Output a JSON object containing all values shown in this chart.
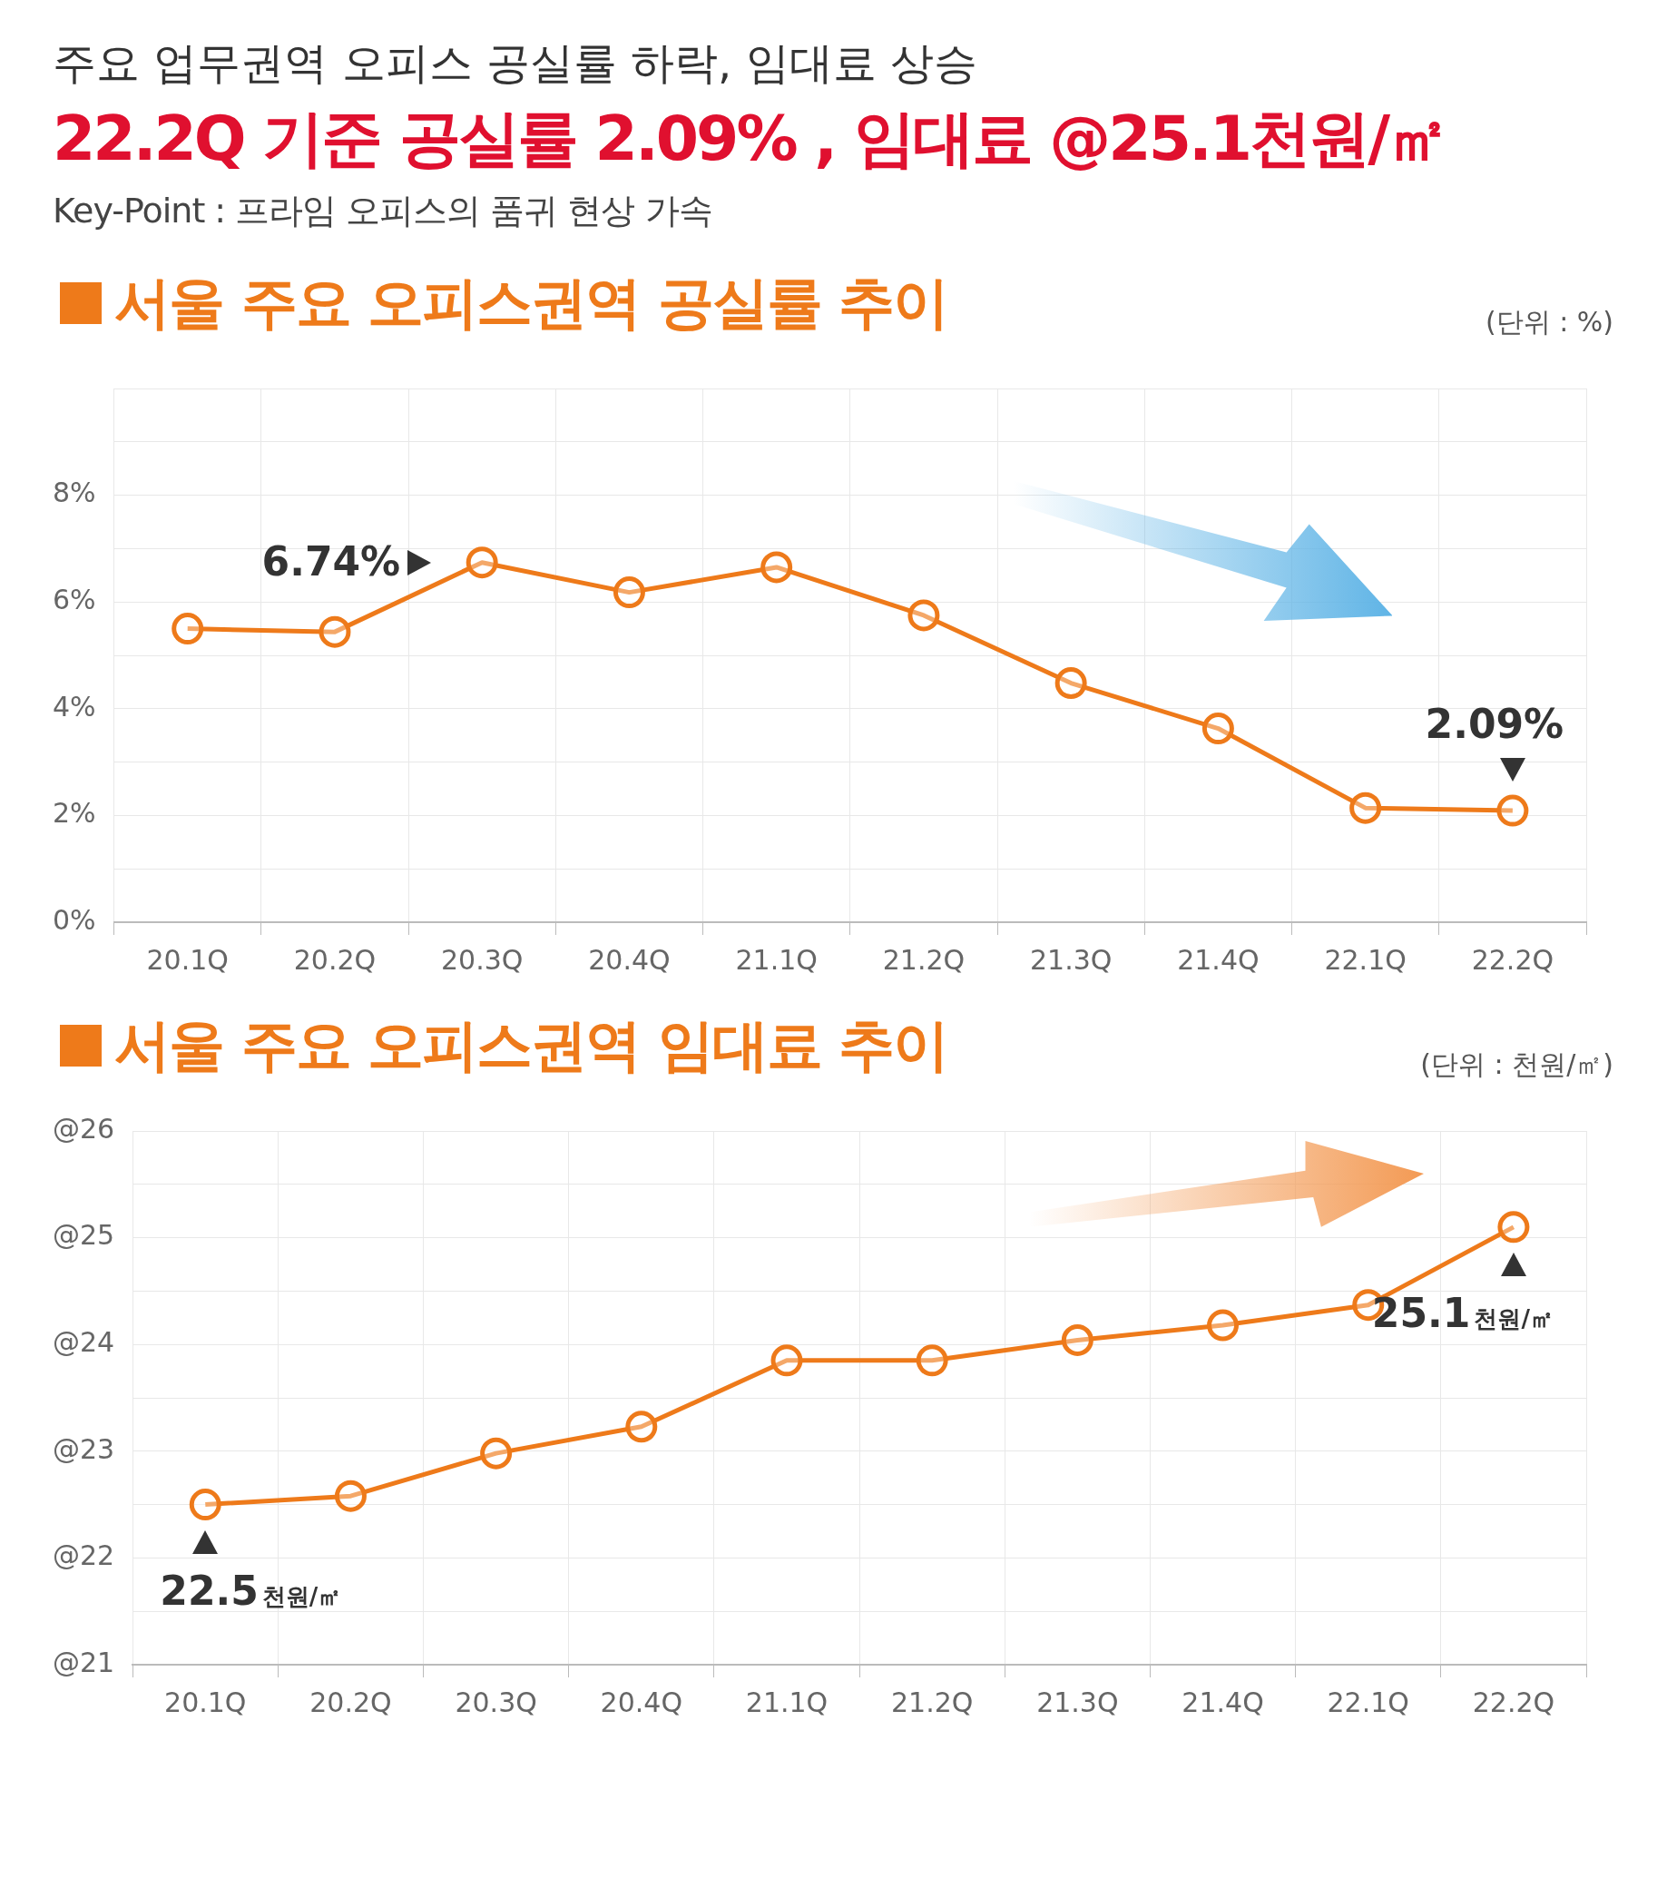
{
  "chart_data": [
    {
      "type": "other",
      "title": "주요 업무권역 오피스 공실률 하락, 임대료 상승",
      "subtitle": "22.2Q 기준 공실률 2.09% , 임대료 @25.1천원/㎡",
      "annotations": [
        "Key-Point : 프라임 오피스의 품귀 현상 가속"
      ]
    },
    {
      "type": "line",
      "title": "서울 주요 오피스권역 공실률 추이",
      "ylabel": "(단위 : %)",
      "categories": [
        "20.1Q",
        "20.2Q",
        "20.3Q",
        "20.4Q",
        "21.1Q",
        "21.2Q",
        "21.3Q",
        "21.4Q",
        "22.1Q",
        "22.2Q"
      ],
      "series": [
        {
          "color": "#ee7a1a",
          "values": [
            5.5,
            5.44,
            6.74,
            6.18,
            6.65,
            5.75,
            4.48,
            3.63,
            2.14,
            2.09
          ],
          "value_labels": [
            null,
            null,
            "6.74%",
            null,
            null,
            null,
            null,
            null,
            null,
            "2.09%"
          ]
        }
      ],
      "ylim": [
        0,
        10
      ],
      "yticks": [
        {
          "value": 0,
          "label": "0%"
        },
        {
          "value": 1,
          "label": null
        },
        {
          "value": 2,
          "label": "2%"
        },
        {
          "value": 3,
          "label": null
        },
        {
          "value": 4,
          "label": "4%"
        },
        {
          "value": 5,
          "label": null
        },
        {
          "value": 6,
          "label": "6%"
        },
        {
          "value": 7,
          "label": null
        },
        {
          "value": 8,
          "label": "8%"
        },
        {
          "value": 9,
          "label": null
        },
        {
          "value": 10,
          "label": null
        }
      ],
      "grid": true,
      "legend": false,
      "marker": "circle",
      "line_style": "solid"
    },
    {
      "type": "line",
      "title": "서울 주요 오피스권역 임대료 추이",
      "ylabel": "(단위 : 천원/㎡)",
      "categories": [
        "20.1Q",
        "20.2Q",
        "20.3Q",
        "20.4Q",
        "21.1Q",
        "21.2Q",
        "21.3Q",
        "21.4Q",
        "22.1Q",
        "22.2Q"
      ],
      "series": [
        {
          "color": "#ee7a1a",
          "values": [
            22.5,
            22.58,
            22.98,
            23.23,
            23.85,
            23.85,
            24.04,
            24.18,
            24.37,
            25.1
          ],
          "value_labels": [
            "22.5천원/㎡",
            null,
            null,
            null,
            null,
            null,
            null,
            null,
            null,
            "25.1천원/㎡"
          ]
        }
      ],
      "ylim": [
        21,
        26
      ],
      "yticks": [
        {
          "value": 21,
          "label": "@21"
        },
        {
          "value": 21.5,
          "label": null
        },
        {
          "value": 22,
          "label": "@22"
        },
        {
          "value": 22.5,
          "label": null
        },
        {
          "value": 23,
          "label": "@23"
        },
        {
          "value": 23.5,
          "label": null
        },
        {
          "value": 24,
          "label": "@24"
        },
        {
          "value": 24.5,
          "label": null
        },
        {
          "value": 25,
          "label": "@25"
        },
        {
          "value": 25.5,
          "label": null
        },
        {
          "value": 26,
          "label": "@26"
        }
      ],
      "grid": true,
      "legend": false,
      "marker": "circle",
      "line_style": "solid"
    }
  ]
}
